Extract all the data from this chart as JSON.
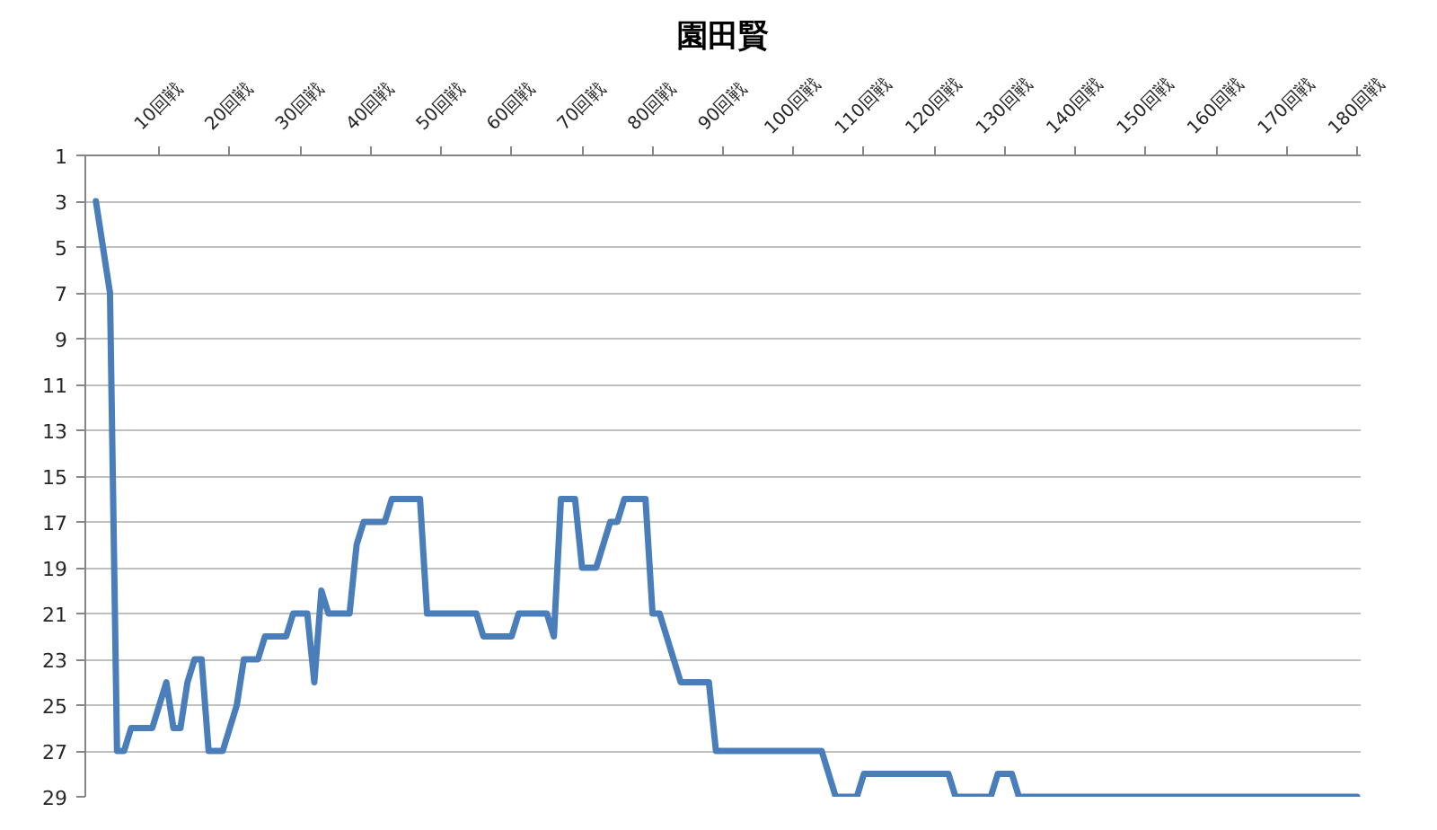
{
  "chart_data": {
    "type": "line",
    "title": "園田賢",
    "categories": [
      null,
      null,
      null,
      null,
      null,
      null,
      null,
      null,
      null,
      null,
      "10回戦",
      null,
      null,
      null,
      null,
      null,
      null,
      null,
      null,
      null,
      "20回戦",
      null,
      null,
      null,
      null,
      null,
      null,
      null,
      null,
      null,
      "30回戦",
      null,
      null,
      null,
      null,
      null,
      null,
      null,
      null,
      null,
      "40回戦",
      null,
      null,
      null,
      null,
      null,
      null,
      null,
      null,
      null,
      "50回戦",
      null,
      null,
      null,
      null,
      null,
      null,
      null,
      null,
      null,
      "60回戦",
      null,
      null,
      null,
      null,
      null,
      null,
      null,
      null,
      null,
      "70回戦",
      null,
      null,
      null,
      null,
      null,
      null,
      null,
      null,
      null,
      "80回戦",
      null,
      null,
      null,
      null,
      null,
      null,
      null,
      null,
      null,
      "90回戦",
      null,
      null,
      null,
      null,
      null,
      null,
      null,
      null,
      null,
      "100回戦",
      null,
      null,
      null,
      null,
      null,
      null,
      null,
      null,
      null,
      "110回戦",
      null,
      null,
      null,
      null,
      null,
      null,
      null,
      null,
      null,
      "120回戦",
      null,
      null,
      null,
      null,
      null,
      null,
      null,
      null,
      null,
      "130回戦",
      null,
      null,
      null,
      null,
      null,
      null,
      null,
      null,
      null,
      "140回戦",
      null,
      null,
      null,
      null,
      null,
      null,
      null,
      null,
      null,
      "150回戦",
      null,
      null,
      null,
      null,
      null,
      null,
      null,
      null,
      null,
      "160回戦",
      null,
      null,
      null,
      null,
      null,
      null,
      null,
      null,
      null,
      "170回戦",
      null,
      null,
      null,
      null,
      null,
      null,
      null,
      null,
      null,
      "180回戦"
    ],
    "series": [
      {
        "color": "#4a7ebb",
        "values": [
          null,
          3,
          5,
          7,
          27,
          27,
          26,
          26,
          26,
          26,
          25,
          24,
          26,
          26,
          24,
          23,
          23,
          27,
          27,
          27,
          26,
          25,
          23,
          23,
          23,
          22,
          22,
          22,
          22,
          21,
          21,
          21,
          24,
          20,
          21,
          21,
          21,
          21,
          18,
          17,
          17,
          17,
          17,
          16,
          16,
          16,
          16,
          16,
          21,
          21,
          21,
          21,
          21,
          21,
          21,
          21,
          22,
          22,
          22,
          22,
          22,
          21,
          21,
          21,
          21,
          21,
          22,
          16,
          16,
          16,
          19,
          19,
          19,
          18,
          17,
          17,
          16,
          16,
          16,
          16,
          21,
          21,
          22,
          23,
          24,
          24,
          24,
          24,
          24,
          27,
          27,
          27,
          27,
          27,
          27,
          27,
          27,
          27,
          27,
          27,
          27,
          27,
          27,
          27,
          27,
          28,
          29,
          29,
          29,
          29,
          28,
          28,
          28,
          28,
          28,
          28,
          28,
          28,
          28,
          28,
          28,
          28,
          28,
          29,
          29,
          29,
          29,
          29,
          29,
          28,
          28,
          28,
          29,
          29,
          29,
          29,
          29,
          29,
          29,
          29,
          29,
          29,
          29,
          29,
          29,
          29,
          29,
          29,
          29,
          29,
          29,
          29,
          29,
          29,
          29,
          29,
          29,
          29,
          29,
          29,
          29,
          29,
          29,
          29,
          29,
          29,
          29,
          29,
          29,
          29,
          29,
          29,
          29,
          29,
          29,
          29,
          29,
          29,
          29,
          29,
          29
        ]
      }
    ],
    "ylim": [
      29,
      1
    ],
    "yticks": [
      1,
      3,
      5,
      7,
      9,
      11,
      13,
      15,
      17,
      19,
      21,
      23,
      25,
      27,
      29
    ],
    "grid": "y",
    "line_style": "solid"
  }
}
